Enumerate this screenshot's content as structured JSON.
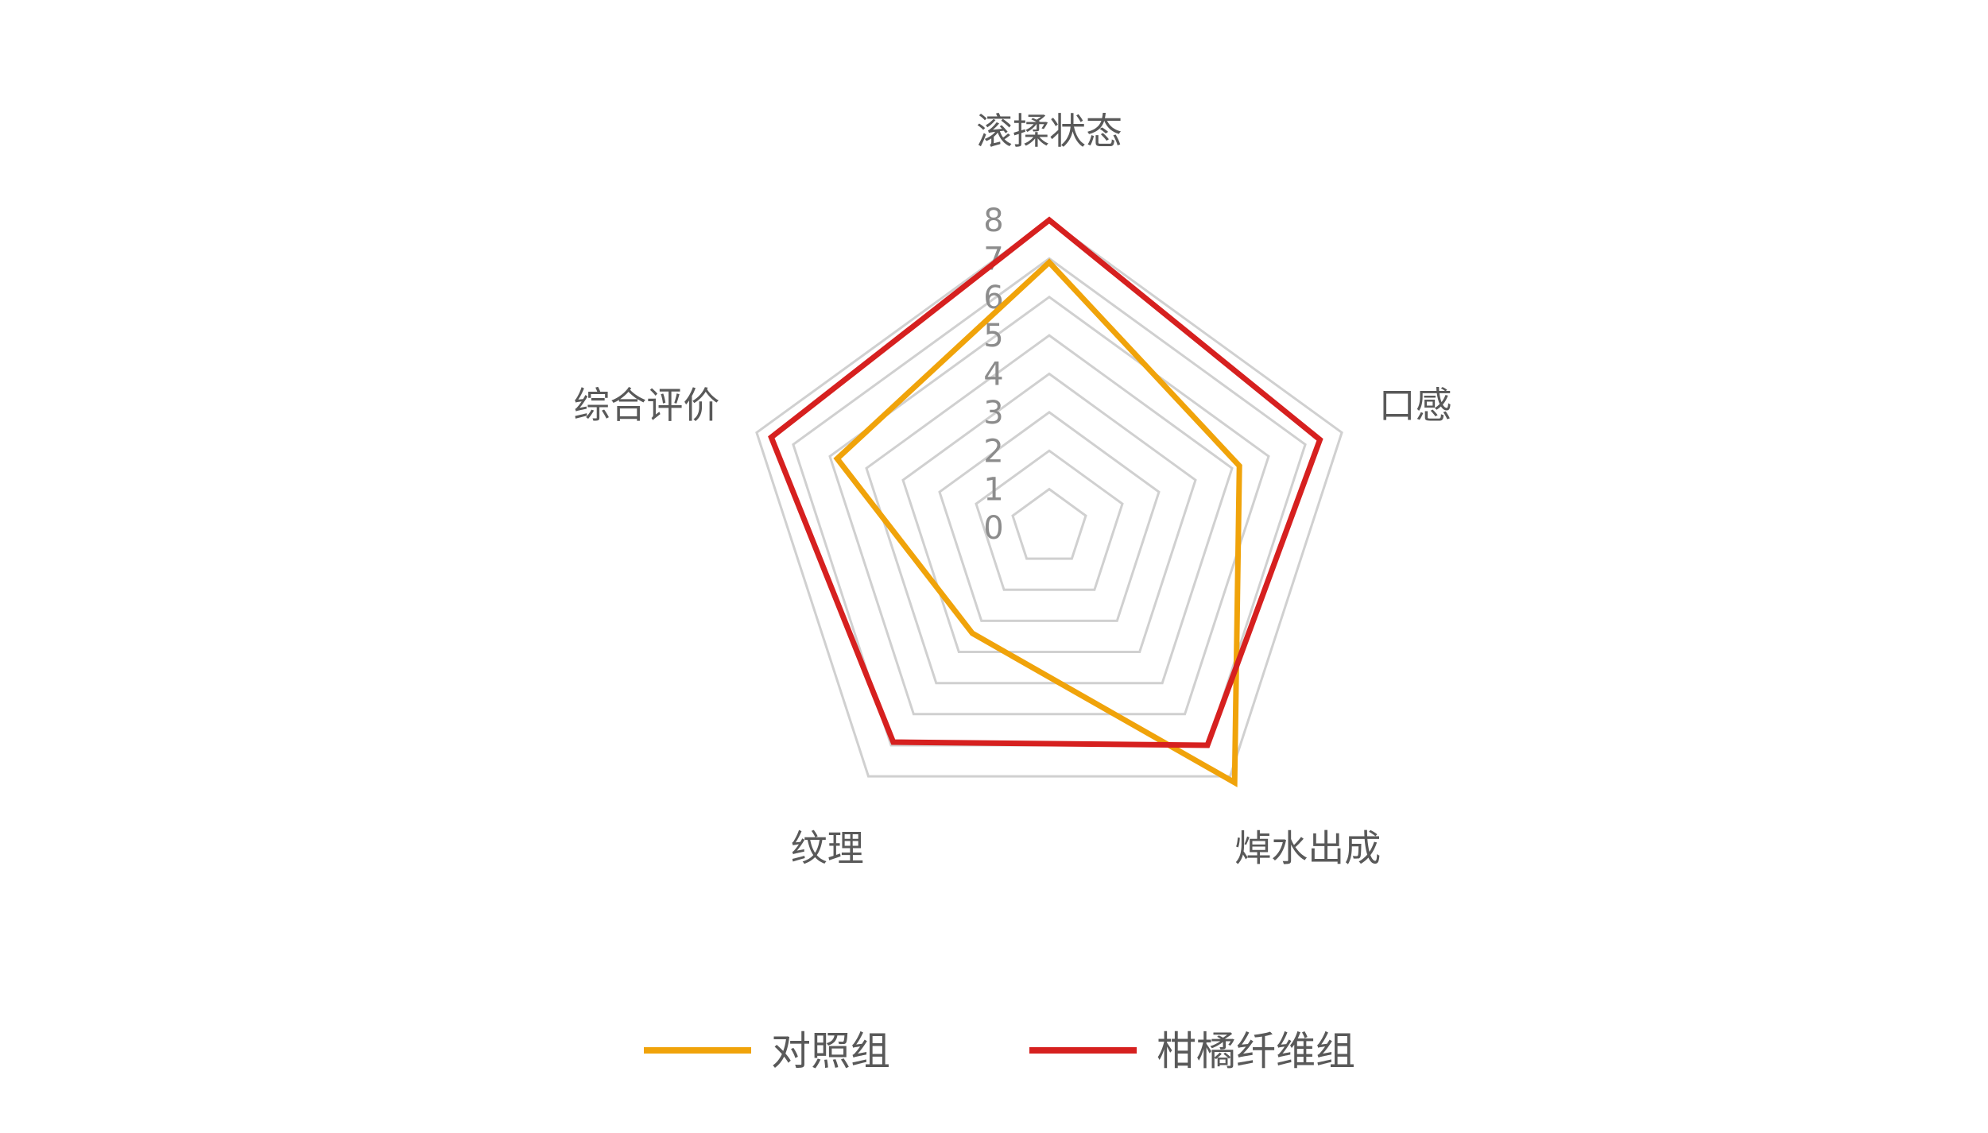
{
  "chart_data": {
    "type": "radar",
    "categories": [
      "滚揉状态",
      "口感",
      "焯水出成",
      "纹理",
      "综合评价"
    ],
    "r_ticks": [
      "0",
      "1",
      "2",
      "3",
      "4",
      "5",
      "6",
      "7",
      "8"
    ],
    "rlim": [
      0,
      8
    ],
    "grid": true,
    "legend_position": "bottom",
    "series": [
      {
        "name": "对照组",
        "values": [
          6.9,
          5.2,
          8.2,
          3.4,
          5.8
        ],
        "color": "#F0A30A"
      },
      {
        "name": "柑橘纤维组",
        "values": [
          8.0,
          7.4,
          7.0,
          6.9,
          7.6
        ],
        "color": "#D6201F"
      }
    ]
  }
}
